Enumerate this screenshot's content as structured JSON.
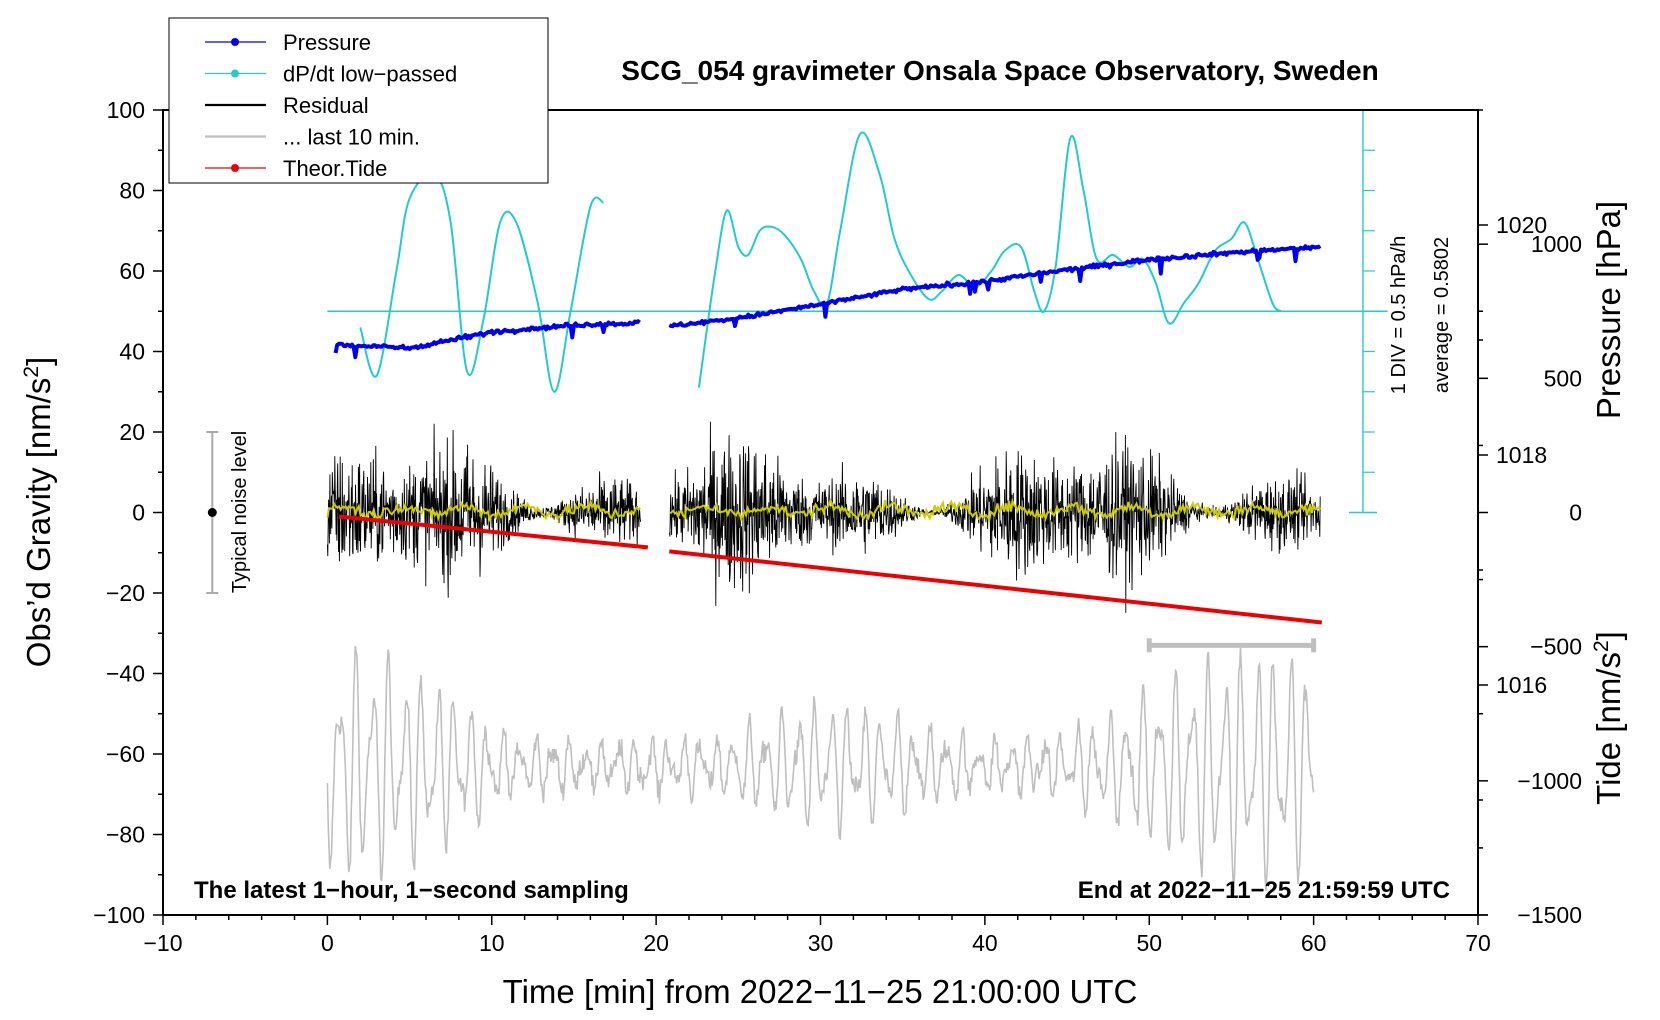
{
  "chart_data": {
    "type": "line",
    "title": "SCG_054 gravimeter Onsala Space Observatory, Sweden",
    "xlabel": "Time [min] from 2022−11−25 21:00:00 UTC",
    "ylabel_main": "Obs’d Gravity [nm/s",
    "ylabel_main_sup": "2",
    "ylabel_main_end": "]",
    "ylabel_pressure": "Pressure [hPa]",
    "ylabel_tide": "Tide [nm/s",
    "ylabel_tide_sup": "2",
    "ylabel_tide_end": "]",
    "xlim": [
      -10,
      70
    ],
    "ylim": [
      -100,
      100
    ],
    "x_ticks": [
      {
        "value": -10,
        "label": "−10"
      },
      {
        "value": 0,
        "label": "0"
      },
      {
        "value": 10,
        "label": "10"
      },
      {
        "value": 20,
        "label": "20"
      },
      {
        "value": 30,
        "label": "30"
      },
      {
        "value": 40,
        "label": "40"
      },
      {
        "value": 50,
        "label": "50"
      },
      {
        "value": 60,
        "label": "60"
      },
      {
        "value": 70,
        "label": "70"
      }
    ],
    "y_ticks": [
      {
        "value": 100,
        "label": "100"
      },
      {
        "value": 80,
        "label": "80"
      },
      {
        "value": 60,
        "label": "60"
      },
      {
        "value": 40,
        "label": "40"
      },
      {
        "value": 20,
        "label": "20"
      },
      {
        "value": 0,
        "label": "0"
      },
      {
        "value": -20,
        "label": "−20"
      },
      {
        "value": -40,
        "label": "−40"
      },
      {
        "value": -60,
        "label": "−60"
      },
      {
        "value": -80,
        "label": "−80"
      },
      {
        "value": -100,
        "label": "−100"
      }
    ],
    "pressure_axis": {
      "range": [
        1014,
        1021
      ],
      "ticks": [
        {
          "value": 1020,
          "label": "1020"
        },
        {
          "value": 1018,
          "label": "1018"
        },
        {
          "value": 1016,
          "label": "1016"
        }
      ]
    },
    "tide_axis": {
      "range": [
        -1500,
        1500
      ],
      "ticks": [
        {
          "value": 1000,
          "label": "1000"
        },
        {
          "value": 500,
          "label": "500"
        },
        {
          "value": 0,
          "label": "0"
        },
        {
          "value": -500,
          "label": "−500"
        },
        {
          "value": -1000,
          "label": "−1000"
        },
        {
          "value": -1500,
          "label": "−1500"
        }
      ]
    },
    "colors": {
      "pressure": "#0000ee",
      "dpdt": "#22cccc",
      "residual": "#000000",
      "last10": "#bfbfbf",
      "tide": "#ee0000",
      "smoothed": "#cccc00"
    },
    "legend": [
      {
        "label": "Pressure",
        "style": "line-dot",
        "color": "#0000ee"
      },
      {
        "label": "dP/dt low−passed",
        "style": "line-dot",
        "color": "#22cccc"
      },
      {
        "label": "Residual",
        "style": "line",
        "color": "#000000"
      },
      {
        "label": "... last 10 min.",
        "style": "line",
        "color": "#bfbfbf"
      },
      {
        "label": "Theor.Tide",
        "style": "line-dot",
        "color": "#ee0000"
      }
    ],
    "legend_position": "top-left",
    "dpdt_scale_label": "1 DIV = 0.5 hPa/h",
    "dpdt_average_label": "average = 0.5802",
    "dpdt_zero_y": 50,
    "dpdt_scale_span": [
      0,
      100
    ],
    "noise_level": {
      "label": "Typical noise level",
      "x": -7,
      "y": 0,
      "range": [
        -20,
        20
      ]
    },
    "last10_bar": {
      "x_start": 50,
      "x_end": 60,
      "y": -33
    },
    "annotation_left": "The latest 1−hour, 1−second sampling",
    "annotation_right": "End at 2022−11−25 21:59:59 UTC",
    "gap": [
      19.1,
      20.8
    ],
    "series": [
      {
        "name": "Pressure",
        "unit": "hPa",
        "segments": [
          {
            "x": [
              0.5,
              5,
              10,
              15,
              19
            ],
            "y": [
              1018.96,
              1018.93,
              1019.07,
              1019.13,
              1019.15
            ]
          },
          {
            "x": [
              20.8,
              25,
              30,
              35,
              40,
              45,
              50,
              55,
              60.4
            ],
            "y": [
              1019.12,
              1019.19,
              1019.31,
              1019.44,
              1019.51,
              1019.61,
              1019.7,
              1019.76,
              1019.81
            ]
          }
        ]
      },
      {
        "name": "dP/dt low-passed",
        "unit": "nm/s2 plot scale",
        "segments": [
          {
            "x": [
              2.0,
              3.0,
              4.2,
              5.0,
              6.5,
              7.5,
              8.5,
              9.5,
              10.5,
              11.5,
              12.8,
              13.8,
              14.8,
              16.0,
              16.8
            ],
            "y": [
              46,
              34,
              60,
              78,
              84,
              72,
              35,
              48,
              72,
              72,
              52,
              30,
              50,
              76,
              77
            ]
          },
          {
            "x": [
              22.6,
              23.6,
              24.3,
              25.0,
              25.6,
              26.3,
              27.0,
              27.8,
              28.8,
              29.6,
              30.4,
              31.2,
              32.4,
              33.6,
              34.5,
              35.5,
              36.6,
              37.4,
              38.4,
              39.4,
              40.4,
              41.2,
              42.2,
              43.0,
              43.6,
              44.3,
              45.2,
              46.0,
              46.8,
              47.8,
              48.8,
              49.6,
              50.4,
              51.2,
              52.1,
              53.0,
              54.0,
              55.0,
              55.8,
              56.6,
              57.5,
              58.0
            ],
            "y": [
              31,
              60,
              75,
              66,
              64,
              70,
              71,
              69,
              63,
              55,
              52,
              70,
              94,
              84,
              68,
              59,
              53,
              55,
              59,
              56,
              60,
              65,
              66,
              55,
              50,
              61,
              93,
              80,
              63,
              64,
              61,
              63,
              57,
              47,
              52,
              57,
              65,
              68,
              72,
              63,
              52,
              50
            ]
          }
        ]
      },
      {
        "name": "Residual",
        "unit": "nm/s2",
        "noise_envelope": [
          -35,
          38
        ],
        "x_range": [
          0,
          60.4
        ]
      },
      {
        "name": "... last 10 min.",
        "unit": "nm/s2",
        "x_range": [
          0,
          60
        ],
        "amplitude_nm_s2": 1400
      },
      {
        "name": "Theor.Tide",
        "unit": "nm/s2",
        "segments": [
          {
            "x": [
              0.7,
              19.5
            ],
            "y": [
              -15,
              -130
            ]
          },
          {
            "x": [
              20.8,
              60.5
            ],
            "y": [
              -145,
              -410
            ]
          }
        ]
      }
    ]
  }
}
